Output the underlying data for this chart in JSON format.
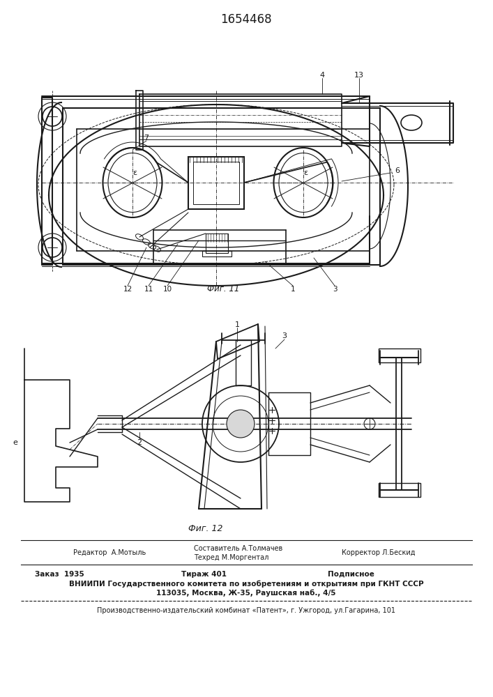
{
  "patent_number": "1654468",
  "fig11_label": "Фиг. 11",
  "fig12_label": "Фиг. 12",
  "editor_line": "Редактор  А.Мотыль",
  "composer_line1": "Составитель А.Толмачев",
  "composer_line2": "Техред М.Моргентал",
  "corrector_line": "Корректор Л.Бескид",
  "order_line": "Заказ  1935",
  "tirazh_line": "Тираж 401",
  "podpisnoe_line": "Подписное",
  "vniiipi_line": "ВНИИПИ Государственного комитета по изобретениям и открытиям при ГКНТ СССР",
  "address_line": "113035, Москва, Ж-35, Раушская наб., 4/5",
  "publisher_line": "Производственно-издательский комбинат «Патент», г. Ужгород, ул.Гагарина, 101",
  "bg_color": "#ffffff",
  "text_color": "#1a1a1a",
  "line_color": "#1a1a1a"
}
